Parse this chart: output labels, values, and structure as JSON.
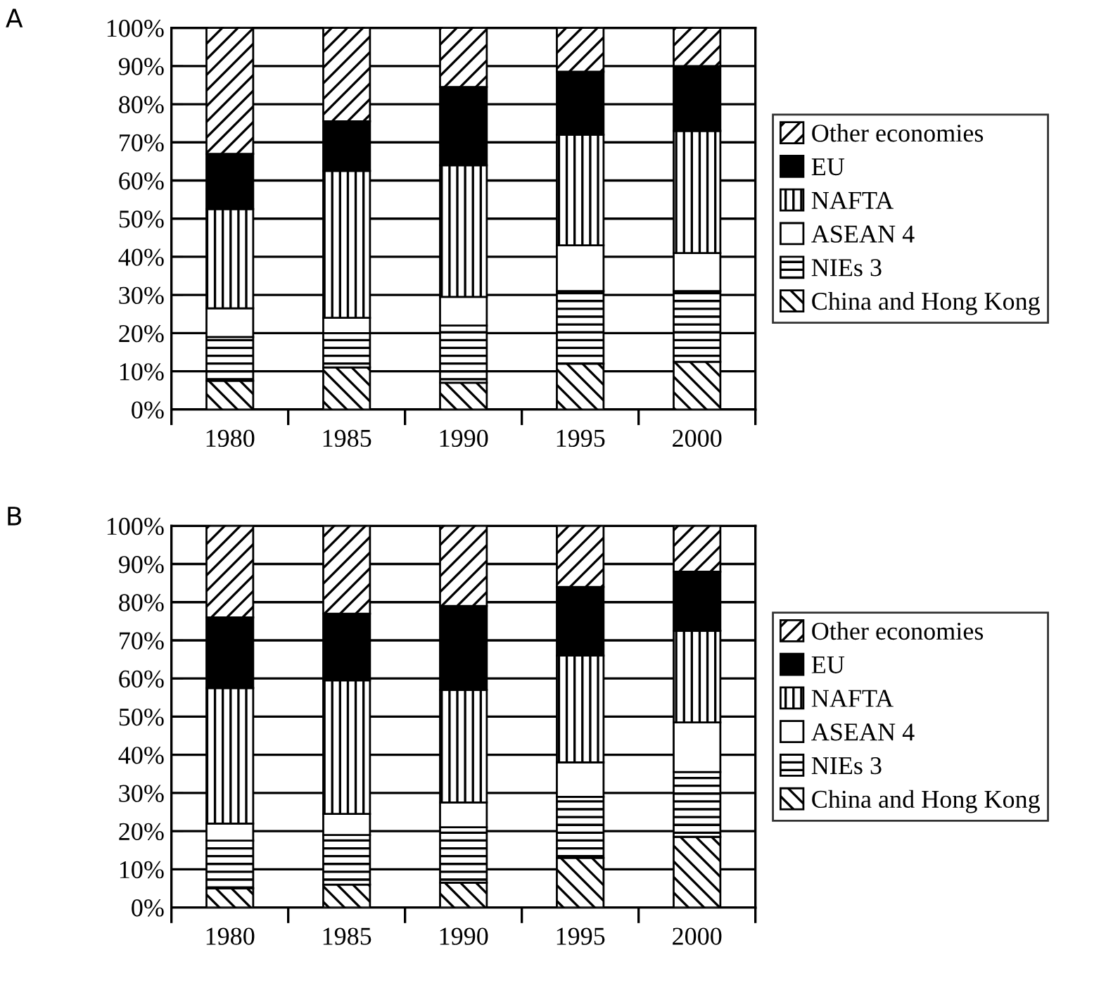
{
  "chart_data": [
    {
      "type": "bar",
      "title": "A",
      "stacked": true,
      "categories": [
        "1980",
        "1985",
        "1990",
        "1995",
        "2000"
      ],
      "series": [
        {
          "name": "China and Hong Kong",
          "color": "#000000",
          "values": [
            7.5,
            11,
            7,
            12,
            12.5
          ]
        },
        {
          "name": "NIEs 3",
          "color": "#000000",
          "values": [
            11.5,
            9,
            15,
            19,
            18.5
          ]
        },
        {
          "name": "ASEAN 4",
          "color": "#ffffff",
          "values": [
            7.5,
            4,
            7.5,
            12,
            10
          ]
        },
        {
          "name": "NAFTA",
          "color": "#000000",
          "values": [
            26,
            38.5,
            34.5,
            29,
            32
          ]
        },
        {
          "name": "EU",
          "color": "#000000",
          "values": [
            14.5,
            13,
            20.5,
            16.5,
            17
          ]
        },
        {
          "name": "Other economies",
          "color": "#000000",
          "values": [
            33,
            24.5,
            15.5,
            11.5,
            10
          ]
        }
      ],
      "ylim": [
        0,
        100
      ],
      "yticks": [
        {
          "value": 0,
          "label": "0%"
        },
        {
          "value": 10,
          "label": "10%"
        },
        {
          "value": 20,
          "label": "20%"
        },
        {
          "value": 30,
          "label": "30%"
        },
        {
          "value": 40,
          "label": "40%"
        },
        {
          "value": 50,
          "label": "50%"
        },
        {
          "value": 60,
          "label": "60%"
        },
        {
          "value": 70,
          "label": "70%"
        },
        {
          "value": 80,
          "label": "80%"
        },
        {
          "value": 90,
          "label": "90%"
        },
        {
          "value": 100,
          "label": "100%"
        }
      ],
      "grid": "y",
      "legend": "right"
    },
    {
      "type": "bar",
      "title": "B",
      "stacked": true,
      "categories": [
        "1980",
        "1985",
        "1990",
        "1995",
        "2000"
      ],
      "series": [
        {
          "name": "China and Hong Kong",
          "color": "#000000",
          "values": [
            5,
            6,
            6.5,
            13,
            18.5
          ]
        },
        {
          "name": "NIEs 3",
          "color": "#000000",
          "values": [
            12.5,
            13,
            14.5,
            16,
            17
          ]
        },
        {
          "name": "ASEAN 4",
          "color": "#ffffff",
          "values": [
            4.5,
            5.5,
            6.5,
            9,
            13
          ]
        },
        {
          "name": "NAFTA",
          "color": "#000000",
          "values": [
            35.5,
            35,
            29.5,
            28,
            24
          ]
        },
        {
          "name": "EU",
          "color": "#000000",
          "values": [
            18.5,
            17.5,
            22,
            18,
            15.5
          ]
        },
        {
          "name": "Other economies",
          "color": "#000000",
          "values": [
            24,
            23,
            21,
            16,
            12
          ]
        }
      ],
      "ylim": [
        0,
        100
      ],
      "yticks": [
        {
          "value": 0,
          "label": "0%"
        },
        {
          "value": 10,
          "label": "10%"
        },
        {
          "value": 20,
          "label": "20%"
        },
        {
          "value": 30,
          "label": "30%"
        },
        {
          "value": 40,
          "label": "40%"
        },
        {
          "value": 50,
          "label": "50%"
        },
        {
          "value": 60,
          "label": "60%"
        },
        {
          "value": 70,
          "label": "70%"
        },
        {
          "value": 80,
          "label": "80%"
        },
        {
          "value": 90,
          "label": "90%"
        },
        {
          "value": 100,
          "label": "100%"
        }
      ],
      "grid": "y",
      "legend": "right"
    }
  ]
}
